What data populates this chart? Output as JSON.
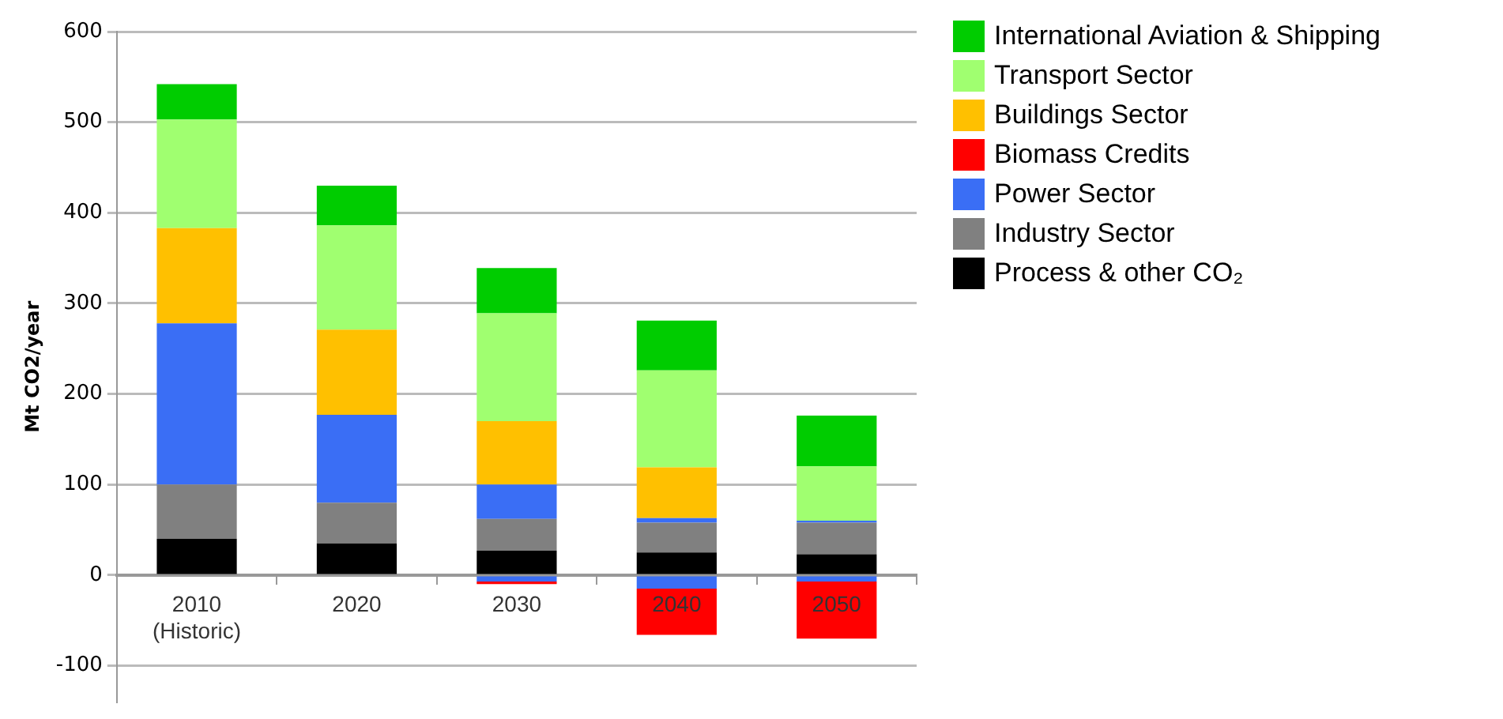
{
  "chart_data": {
    "type": "bar",
    "stacked": true,
    "ylabel": "Mt CO2/year",
    "categories": [
      "2010 (Historic)",
      "2020",
      "2030",
      "2040",
      "2050"
    ],
    "series": [
      {
        "name": "Process & other CO₂",
        "color": "#000000",
        "values": [
          40,
          35,
          27,
          25,
          23
        ]
      },
      {
        "name": "Industry Sector",
        "color": "#808080",
        "values": [
          60,
          45,
          35,
          33,
          35
        ]
      },
      {
        "name": "Power Sector",
        "color": "#3a6ef5",
        "values": [
          178,
          97,
          38,
          5,
          2
        ]
      },
      {
        "color": "#3a6ef5",
        "values": [
          null,
          null,
          -7,
          -15,
          -7
        ]
      },
      {
        "name": "Biomass Credits",
        "color": "#ff0000",
        "values": [
          null,
          null,
          -3,
          -51,
          -63
        ]
      },
      {
        "name": "Buildings Sector",
        "color": "#ffc000",
        "values": [
          105,
          94,
          70,
          56,
          null
        ]
      },
      {
        "name": "Transport Sector",
        "color": "#a0ff70",
        "values": [
          120,
          115,
          119,
          107,
          60
        ]
      },
      {
        "name": "International Aviation & Shipping",
        "color": "#00cc00",
        "values": [
          39,
          44,
          50,
          55,
          56
        ]
      }
    ],
    "ylim": [
      -140,
      600
    ],
    "yticks": [
      -100,
      0,
      100,
      200,
      300,
      400,
      500,
      600
    ],
    "grid": "y",
    "legend": "top right"
  }
}
